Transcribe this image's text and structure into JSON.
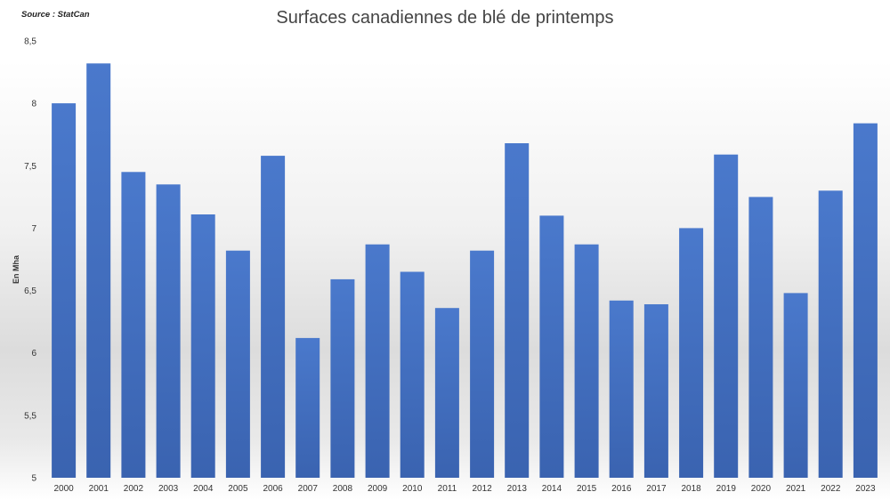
{
  "source": "Source : StatCan",
  "chart_data": {
    "type": "bar",
    "title": "Surfaces canadiennes de blé de printemps",
    "ylabel": "En Mha",
    "xlabel": "",
    "ylim": [
      5,
      8.5
    ],
    "yticks": [
      "5",
      "5,5",
      "6",
      "6,5",
      "7",
      "7,5",
      "8",
      "8,5"
    ],
    "grid": false,
    "categories": [
      "2000",
      "2001",
      "2002",
      "2003",
      "2004",
      "2005",
      "2006",
      "2007",
      "2008",
      "2009",
      "2010",
      "2011",
      "2012",
      "2013",
      "2014",
      "2015",
      "2016",
      "2017",
      "2018",
      "2019",
      "2020",
      "2021",
      "2022",
      "2023"
    ],
    "values": [
      8.0,
      8.32,
      7.45,
      7.35,
      7.11,
      6.82,
      7.58,
      6.12,
      6.59,
      6.87,
      6.65,
      6.36,
      6.82,
      7.68,
      7.1,
      6.87,
      6.42,
      6.39,
      7.0,
      7.59,
      7.25,
      6.48,
      7.3,
      7.84
    ],
    "bar_color": "#4472c4"
  }
}
